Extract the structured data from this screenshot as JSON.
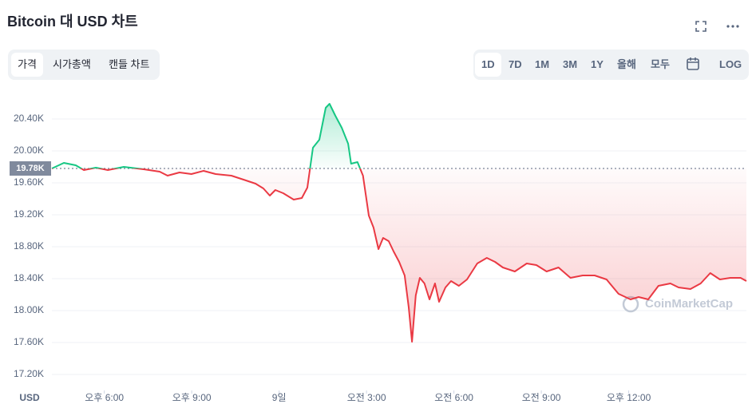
{
  "header": {
    "title": "Bitcoin 대 USD 차트"
  },
  "controls": {
    "tabs": [
      "가격",
      "시가총액",
      "캔들 차트"
    ],
    "active_tab": 0,
    "ranges": [
      "1D",
      "7D",
      "1M",
      "3M",
      "1Y",
      "올해",
      "모두"
    ],
    "active_range": 0,
    "log": "LOG"
  },
  "chart_data": {
    "type": "line",
    "x": [
      16.2,
      16.61,
      17.02,
      17.3,
      17.71,
      18.12,
      18.67,
      19.35,
      19.9,
      20.17,
      20.58,
      20.99,
      21.41,
      21.82,
      22.36,
      22.78,
      23.19,
      23.46,
      23.68,
      23.87,
      24.14,
      24.5,
      24.78,
      24.97,
      25.16,
      25.38,
      25.6,
      25.73,
      25.93,
      26.15,
      26.37,
      26.47,
      26.69,
      26.88,
      27.08,
      27.24,
      27.41,
      27.57,
      27.76,
      27.93,
      28.12,
      28.31,
      28.45,
      28.56,
      28.69,
      28.83,
      28.99,
      29.16,
      29.35,
      29.49,
      29.71,
      29.9,
      30.17,
      30.45,
      30.8,
      31.13,
      31.41,
      31.68,
      32.09,
      32.5,
      32.83,
      33.18,
      33.59,
      34.0,
      34.42,
      34.83,
      35.24,
      35.65,
      36.06,
      36.34,
      36.67,
      37.02,
      37.43,
      37.71,
      38.12,
      38.47,
      38.8,
      39.13,
      39.49,
      39.84,
      40.04
    ],
    "values": [
      19780,
      19850,
      19820,
      19760,
      19790,
      19760,
      19800,
      19770,
      19740,
      19690,
      19730,
      19710,
      19750,
      19710,
      19690,
      19640,
      19590,
      19530,
      19440,
      19510,
      19470,
      19390,
      19410,
      19540,
      20040,
      20140,
      20540,
      20590,
      20440,
      20290,
      20090,
      19840,
      19860,
      19690,
      19190,
      19040,
      18770,
      18910,
      18870,
      18740,
      18610,
      18440,
      18040,
      17610,
      18190,
      18410,
      18340,
      18140,
      18340,
      18110,
      18290,
      18370,
      18310,
      18390,
      18590,
      18660,
      18610,
      18540,
      18490,
      18590,
      18570,
      18490,
      18540,
      18410,
      18440,
      18440,
      18390,
      18210,
      18140,
      18170,
      18140,
      18310,
      18340,
      18290,
      18270,
      18340,
      18470,
      18390,
      18410,
      18410,
      18370
    ],
    "baseline": {
      "value": 19780,
      "label": "19.78K"
    },
    "up_color": "#16c784",
    "down_color": "#ea3943",
    "xlim": [
      16.2,
      40.04
    ],
    "xticks": [
      {
        "value": 18,
        "label": "오후 6:00"
      },
      {
        "value": 21,
        "label": "오후 9:00"
      },
      {
        "value": 24,
        "label": "9일"
      },
      {
        "value": 27,
        "label": "오전 3:00"
      },
      {
        "value": 30,
        "label": "오전 6:00"
      },
      {
        "value": 33,
        "label": "오전 9:00"
      },
      {
        "value": 36,
        "label": "오후 12:00"
      }
    ],
    "ylim": [
      17000,
      20640
    ],
    "yticks": [
      {
        "value": 17200,
        "label": "17.20K"
      },
      {
        "value": 17600,
        "label": "17.60K"
      },
      {
        "value": 18000,
        "label": "18.00K"
      },
      {
        "value": 18400,
        "label": "18.40K"
      },
      {
        "value": 18800,
        "label": "18.80K"
      },
      {
        "value": 19200,
        "label": "19.20K"
      },
      {
        "value": 19600,
        "label": "19.60K"
      },
      {
        "value": 20000,
        "label": "20.00K"
      },
      {
        "value": 20400,
        "label": "20.40K"
      }
    ],
    "y_label": "USD",
    "grid": true,
    "watermark": "CoinMarketCap"
  }
}
